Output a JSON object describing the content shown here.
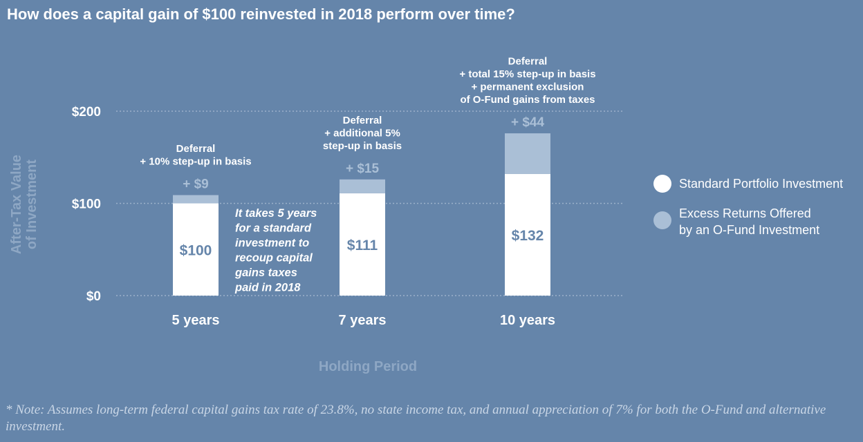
{
  "title": "How does a capital gain of $100 reinvested in 2018 perform over time?",
  "chart_data": {
    "type": "bar",
    "stacked": true,
    "categories": [
      "5 years",
      "7 years",
      "10 years"
    ],
    "series": [
      {
        "name": "Standard Portfolio Investment",
        "values": [
          100,
          111,
          132
        ],
        "color": "#ffffff",
        "value_labels": [
          "$100",
          "$111",
          "$132"
        ]
      },
      {
        "name": "Excess Returns Offered by an O-Fund Investment",
        "values": [
          9,
          15,
          44
        ],
        "color": "#aabfd6",
        "value_labels": [
          "+ $9",
          "+ $15",
          "+ $44"
        ]
      }
    ],
    "category_annotations": [
      [
        "Deferral",
        "+ 10% step-up in basis"
      ],
      [
        "Deferral",
        "+ additional 5%",
        "step-up in basis"
      ],
      [
        "Deferral",
        "+ total 15% step-up in basis",
        "+ permanent exclusion",
        "of O-Fund gains from taxes"
      ]
    ],
    "callout": [
      "It takes 5 years",
      "for a standard",
      "investment to",
      "recoup capital",
      "gains taxes",
      "paid in 2018"
    ],
    "ylim": [
      0,
      200
    ],
    "yticks": [
      0,
      100,
      200
    ],
    "ytick_labels": [
      "$0",
      "$100",
      "$200"
    ],
    "ylabel": [
      "After-Tax Value",
      "of Investment"
    ],
    "xlabel": "Holding Period",
    "legend_position": "right",
    "grid": true
  },
  "note": "* Note: Assumes long-term federal capital gains tax rate of 23.8%, no state income tax, and annual appreciation of 7% for both the O-Fund and alternative investment.",
  "colors": {
    "background": "#6585aa",
    "bar_base": "#ffffff",
    "bar_excess": "#aabfd6",
    "base_value_text": "#6585aa",
    "excess_label_text": "#aabfd6",
    "axis_title_text": "#8ea7c4",
    "grid": "#9db2cb"
  }
}
